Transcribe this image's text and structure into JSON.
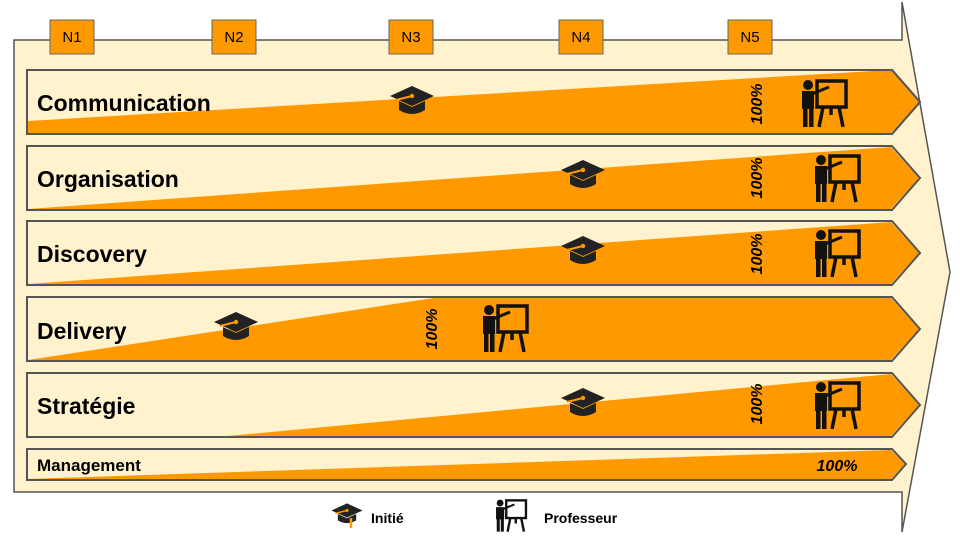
{
  "levels": [
    "N1",
    "N2",
    "N3",
    "N4",
    "N5"
  ],
  "rows": [
    {
      "label": "Communication",
      "percent": "100%",
      "initie": true,
      "professeur": true
    },
    {
      "label": "Organisation",
      "percent": "100%",
      "initie": true,
      "professeur": true
    },
    {
      "label": "Discovery",
      "percent": "100%",
      "initie": true,
      "professeur": true
    },
    {
      "label": "Delivery",
      "percent": "100%",
      "initie": true,
      "professeur": true
    },
    {
      "label": "Stratégie",
      "percent": "100%",
      "initie": true,
      "professeur": true
    },
    {
      "label": "Management",
      "percent": "100%",
      "initie": false,
      "professeur": false
    }
  ],
  "legend": {
    "initie": "Initié",
    "professeur": "Professeur"
  },
  "colors": {
    "orange": "#ff9900",
    "cream": "#fff2cc",
    "border": "#555555",
    "box": "#ff9900"
  },
  "icons": {
    "initie": "graduation-cap-icon",
    "professeur": "teacher-board-icon"
  }
}
